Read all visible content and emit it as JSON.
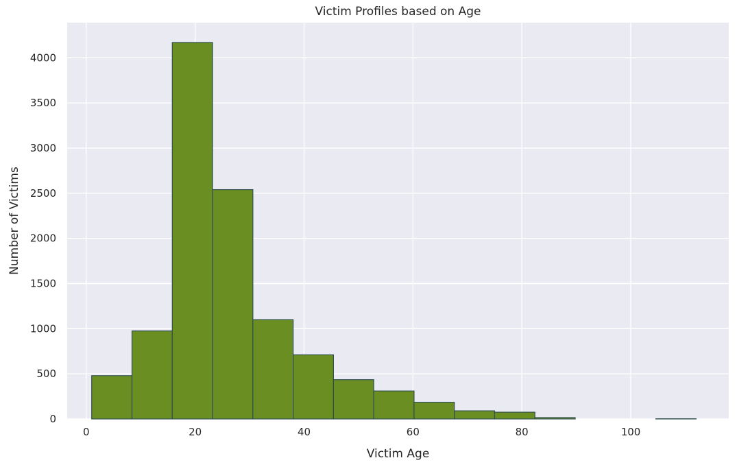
{
  "chart_data": {
    "type": "bar",
    "title": "Victim Profiles based on Age",
    "xlabel": "Victim Age",
    "ylabel": "Number of Victims",
    "xlim": [
      -3.5,
      118
    ],
    "ylim": [
      0,
      4390
    ],
    "x_ticks": [
      0,
      20,
      40,
      60,
      80,
      100
    ],
    "y_ticks": [
      0,
      500,
      1000,
      1500,
      2000,
      2500,
      3000,
      3500,
      4000
    ],
    "grid": true,
    "legend": "none",
    "colors": {
      "plot_background": "#eaeaf2",
      "bar_fill": "#6b8e23",
      "bar_edge": "#2f4f4f",
      "grid": "#ffffff",
      "text": "#262626"
    },
    "bins": [
      {
        "start": 1.0,
        "end": 8.4,
        "count": 480
      },
      {
        "start": 8.4,
        "end": 15.8,
        "count": 975
      },
      {
        "start": 15.8,
        "end": 23.2,
        "count": 4170
      },
      {
        "start": 23.2,
        "end": 30.6,
        "count": 2540
      },
      {
        "start": 30.6,
        "end": 38.0,
        "count": 1100
      },
      {
        "start": 38.0,
        "end": 45.4,
        "count": 710
      },
      {
        "start": 45.4,
        "end": 52.8,
        "count": 435
      },
      {
        "start": 52.8,
        "end": 60.2,
        "count": 310
      },
      {
        "start": 60.2,
        "end": 67.6,
        "count": 185
      },
      {
        "start": 67.6,
        "end": 75.0,
        "count": 90
      },
      {
        "start": 75.0,
        "end": 82.4,
        "count": 75
      },
      {
        "start": 82.4,
        "end": 89.8,
        "count": 15
      },
      {
        "start": 89.8,
        "end": 97.2,
        "count": 0
      },
      {
        "start": 97.2,
        "end": 104.6,
        "count": 0
      },
      {
        "start": 104.6,
        "end": 112.0,
        "count": 2
      }
    ]
  }
}
